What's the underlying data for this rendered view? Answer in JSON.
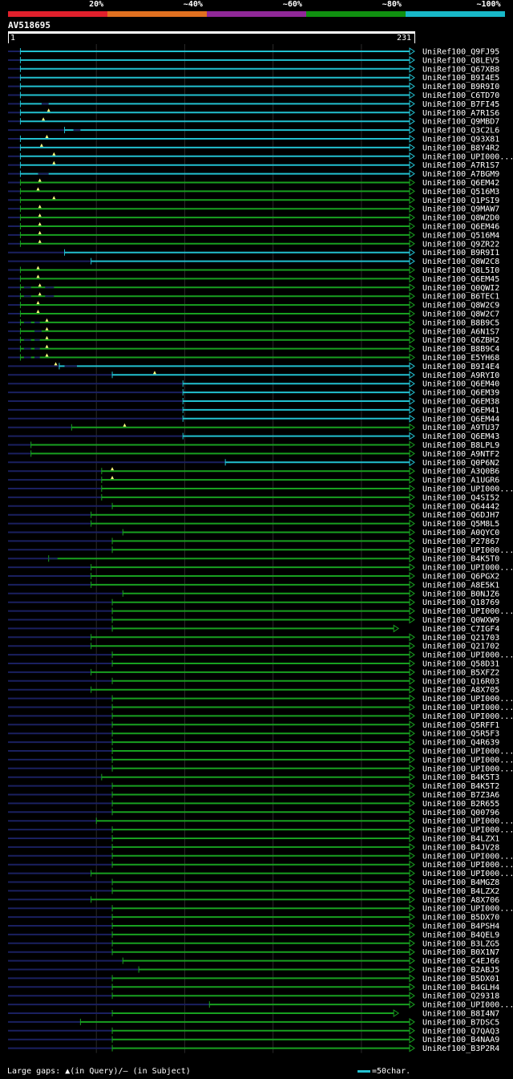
{
  "legend": [
    {
      "label": "20%",
      "color": "#e0202c"
    },
    {
      "label": "~40%",
      "color": "#e07020"
    },
    {
      "label": "~60%",
      "color": "#902898"
    },
    {
      "label": "~80%",
      "color": "#109010"
    },
    {
      "label": "~100%",
      "color": "#18b8c8"
    }
  ],
  "query": {
    "id": "AV518695",
    "start": "1",
    "end": "231",
    "length": 231
  },
  "colors": {
    "cyan": "#22c0d0",
    "green": "#18a020",
    "navy": "#1a2060",
    "grid": "#2a2a2a",
    "marker": "#ffff80"
  },
  "hits": [
    {
      "label": "UniRef100_Q9FJ95",
      "color": "cyan",
      "start": 8,
      "end": 231,
      "q_gaps": [],
      "s_gaps": []
    },
    {
      "label": "UniRef100_Q8LEV5",
      "color": "cyan",
      "start": 8,
      "end": 231,
      "q_gaps": [],
      "s_gaps": []
    },
    {
      "label": "UniRef100_Q67XB8",
      "color": "cyan",
      "start": 8,
      "end": 231,
      "q_gaps": [],
      "s_gaps": []
    },
    {
      "label": "UniRef100_B9I4E5",
      "color": "cyan",
      "start": 8,
      "end": 231,
      "q_gaps": [],
      "s_gaps": []
    },
    {
      "label": "UniRef100_B9R9I0",
      "color": "cyan",
      "start": 8,
      "end": 231,
      "q_gaps": [],
      "s_gaps": []
    },
    {
      "label": "UniRef100_C6TD70",
      "color": "cyan",
      "start": 8,
      "end": 231,
      "q_gaps": [],
      "s_gaps": []
    },
    {
      "label": "UniRef100_B7FI45",
      "color": "cyan",
      "start": 8,
      "end": 231,
      "q_gaps": [],
      "s_gaps": [
        [
          20,
          24
        ]
      ]
    },
    {
      "label": "UniRef100_A7R1S6",
      "color": "cyan",
      "start": 8,
      "end": 231,
      "q_gaps": [
        24
      ],
      "s_gaps": []
    },
    {
      "label": "UniRef100_Q9MBD7",
      "color": "cyan",
      "start": 8,
      "end": 231,
      "q_gaps": [
        21
      ],
      "s_gaps": []
    },
    {
      "label": "UniRef100_Q3C2L6",
      "color": "cyan",
      "start": 33,
      "end": 231,
      "q_gaps": [],
      "s_gaps": [
        [
          38,
          42
        ]
      ]
    },
    {
      "label": "UniRef100_Q93X81",
      "color": "cyan",
      "start": 8,
      "end": 231,
      "q_gaps": [
        23
      ],
      "s_gaps": []
    },
    {
      "label": "UniRef100_B8Y4R2",
      "color": "cyan",
      "start": 8,
      "end": 231,
      "q_gaps": [
        20
      ],
      "s_gaps": []
    },
    {
      "label": "UniRef100_UPI000...",
      "color": "cyan",
      "start": 8,
      "end": 231,
      "q_gaps": [
        27
      ],
      "s_gaps": []
    },
    {
      "label": "UniRef100_A7R1S7",
      "color": "cyan",
      "start": 8,
      "end": 231,
      "q_gaps": [
        27
      ],
      "s_gaps": []
    },
    {
      "label": "UniRef100_A7BGM9",
      "color": "cyan",
      "start": 8,
      "end": 231,
      "q_gaps": [],
      "s_gaps": [
        [
          18,
          24
        ]
      ]
    },
    {
      "label": "UniRef100_Q6EM42",
      "color": "green",
      "start": 8,
      "end": 231,
      "q_gaps": [
        19
      ],
      "s_gaps": []
    },
    {
      "label": "UniRef100_Q516M3",
      "color": "green",
      "start": 8,
      "end": 231,
      "q_gaps": [
        18
      ],
      "s_gaps": []
    },
    {
      "label": "UniRef100_Q1PSI9",
      "color": "green",
      "start": 8,
      "end": 231,
      "q_gaps": [
        27
      ],
      "s_gaps": []
    },
    {
      "label": "UniRef100_Q9MAW7",
      "color": "green",
      "start": 8,
      "end": 231,
      "q_gaps": [
        19
      ],
      "s_gaps": []
    },
    {
      "label": "UniRef100_Q8W2D0",
      "color": "green",
      "start": 8,
      "end": 231,
      "q_gaps": [
        19
      ],
      "s_gaps": []
    },
    {
      "label": "UniRef100_Q6EM46",
      "color": "green",
      "start": 8,
      "end": 231,
      "q_gaps": [
        19
      ],
      "s_gaps": []
    },
    {
      "label": "UniRef100_Q516M4",
      "color": "green",
      "start": 8,
      "end": 231,
      "q_gaps": [
        19
      ],
      "s_gaps": []
    },
    {
      "label": "UniRef100_Q9ZR22",
      "color": "green",
      "start": 8,
      "end": 231,
      "q_gaps": [
        19
      ],
      "s_gaps": []
    },
    {
      "label": "UniRef100_B9R9I1",
      "color": "cyan",
      "start": 33,
      "end": 231,
      "q_gaps": [],
      "s_gaps": []
    },
    {
      "label": "UniRef100_Q8W2C8",
      "color": "cyan",
      "start": 48,
      "end": 231,
      "q_gaps": [],
      "s_gaps": []
    },
    {
      "label": "UniRef100_Q8L5I0",
      "color": "green",
      "start": 8,
      "end": 231,
      "q_gaps": [
        18
      ],
      "s_gaps": []
    },
    {
      "label": "UniRef100_Q6EM45",
      "color": "green",
      "start": 8,
      "end": 231,
      "q_gaps": [
        18
      ],
      "s_gaps": []
    },
    {
      "label": "UniRef100_Q0QWI2",
      "color": "green",
      "start": 8,
      "end": 231,
      "q_gaps": [
        19
      ],
      "s_gaps": [
        [
          10,
          14
        ],
        [
          22,
          27
        ]
      ]
    },
    {
      "label": "UniRef100_B6TEC1",
      "color": "green",
      "start": 8,
      "end": 231,
      "q_gaps": [
        19
      ],
      "s_gaps": [
        [
          10,
          14
        ],
        [
          22,
          27
        ]
      ]
    },
    {
      "label": "UniRef100_Q8W2C9",
      "color": "green",
      "start": 8,
      "end": 231,
      "q_gaps": [
        18
      ],
      "s_gaps": []
    },
    {
      "label": "UniRef100_Q8W2C7",
      "color": "green",
      "start": 8,
      "end": 231,
      "q_gaps": [
        18
      ],
      "s_gaps": []
    },
    {
      "label": "UniRef100_B8B9C5",
      "color": "green",
      "start": 8,
      "end": 231,
      "q_gaps": [
        23
      ],
      "s_gaps": [
        [
          10,
          14
        ],
        [
          16,
          19
        ]
      ]
    },
    {
      "label": "UniRef100_A6N1S7",
      "color": "green",
      "start": 8,
      "end": 231,
      "q_gaps": [
        23
      ],
      "s_gaps": [
        [
          16,
          20
        ]
      ]
    },
    {
      "label": "UniRef100_Q6ZBH2",
      "color": "green",
      "start": 8,
      "end": 231,
      "q_gaps": [
        23
      ],
      "s_gaps": [
        [
          10,
          14
        ],
        [
          16,
          19
        ]
      ]
    },
    {
      "label": "UniRef100_B8B9C4",
      "color": "green",
      "start": 8,
      "end": 231,
      "q_gaps": [
        23
      ],
      "s_gaps": [
        [
          10,
          14
        ],
        [
          16,
          19
        ]
      ]
    },
    {
      "label": "UniRef100_E5YH68",
      "color": "green",
      "start": 8,
      "end": 231,
      "q_gaps": [
        23
      ],
      "s_gaps": [
        [
          10,
          14
        ],
        [
          16,
          19
        ]
      ]
    },
    {
      "label": "UniRef100_B9I4E4",
      "color": "cyan",
      "start": 30,
      "end": 231,
      "q_gaps": [
        28
      ],
      "s_gaps": [
        [
          33,
          40
        ]
      ]
    },
    {
      "label": "UniRef100_A9RYI0",
      "color": "cyan",
      "start": 60,
      "end": 231,
      "q_gaps": [
        84
      ],
      "s_gaps": []
    },
    {
      "label": "UniRef100_Q6EM40",
      "color": "cyan",
      "start": 100,
      "end": 231,
      "q_gaps": [],
      "s_gaps": []
    },
    {
      "label": "UniRef100_Q6EM39",
      "color": "cyan",
      "start": 100,
      "end": 231,
      "q_gaps": [],
      "s_gaps": []
    },
    {
      "label": "UniRef100_Q6EM38",
      "color": "cyan",
      "start": 100,
      "end": 231,
      "q_gaps": [],
      "s_gaps": []
    },
    {
      "label": "UniRef100_Q6EM41",
      "color": "cyan",
      "start": 100,
      "end": 231,
      "q_gaps": [],
      "s_gaps": []
    },
    {
      "label": "UniRef100_Q6EM44",
      "color": "cyan",
      "start": 100,
      "end": 231,
      "q_gaps": [],
      "s_gaps": []
    },
    {
      "label": "UniRef100_A9TU37",
      "color": "green",
      "start": 37,
      "end": 231,
      "q_gaps": [
        67
      ],
      "s_gaps": []
    },
    {
      "label": "UniRef100_Q6EM43",
      "color": "cyan",
      "start": 100,
      "end": 231,
      "q_gaps": [],
      "s_gaps": []
    },
    {
      "label": "UniRef100_B8LPL9",
      "color": "green",
      "start": 14,
      "end": 231,
      "q_gaps": [],
      "s_gaps": []
    },
    {
      "label": "UniRef100_A9NTF2",
      "color": "green",
      "start": 14,
      "end": 231,
      "q_gaps": [],
      "s_gaps": []
    },
    {
      "label": "UniRef100_Q0P6N2",
      "color": "cyan",
      "start": 124,
      "end": 231,
      "q_gaps": [],
      "s_gaps": []
    },
    {
      "label": "UniRef100_A3Q0B6",
      "color": "green",
      "start": 54,
      "end": 231,
      "q_gaps": [
        60
      ],
      "s_gaps": []
    },
    {
      "label": "UniRef100_A1UGR6",
      "color": "green",
      "start": 54,
      "end": 231,
      "q_gaps": [
        60
      ],
      "s_gaps": []
    },
    {
      "label": "UniRef100_UPI000...",
      "color": "green",
      "start": 54,
      "end": 231,
      "q_gaps": [],
      "s_gaps": []
    },
    {
      "label": "UniRef100_Q4SI52",
      "color": "green",
      "start": 54,
      "end": 231,
      "q_gaps": [],
      "s_gaps": []
    },
    {
      "label": "UniRef100_Q64442",
      "color": "green",
      "start": 60,
      "end": 231,
      "q_gaps": [],
      "s_gaps": []
    },
    {
      "label": "UniRef100_Q6DJH7",
      "color": "green",
      "start": 48,
      "end": 231,
      "q_gaps": [],
      "s_gaps": []
    },
    {
      "label": "UniRef100_Q5M8L5",
      "color": "green",
      "start": 48,
      "end": 231,
      "q_gaps": [],
      "s_gaps": []
    },
    {
      "label": "UniRef100_A0QYC0",
      "color": "green",
      "start": 66,
      "end": 231,
      "q_gaps": [],
      "s_gaps": []
    },
    {
      "label": "UniRef100_P27867",
      "color": "green",
      "start": 60,
      "end": 231,
      "q_gaps": [],
      "s_gaps": []
    },
    {
      "label": "UniRef100_UPI000...",
      "color": "green",
      "start": 60,
      "end": 231,
      "q_gaps": [],
      "s_gaps": []
    },
    {
      "label": "UniRef100_B4K5T0",
      "color": "green",
      "start": 24,
      "end": 231,
      "q_gaps": [],
      "s_gaps": [
        [
          24,
          29
        ]
      ]
    },
    {
      "label": "UniRef100_UPI000...",
      "color": "green",
      "start": 48,
      "end": 231,
      "q_gaps": [],
      "s_gaps": []
    },
    {
      "label": "UniRef100_Q6PGX2",
      "color": "green",
      "start": 48,
      "end": 231,
      "q_gaps": [],
      "s_gaps": []
    },
    {
      "label": "UniRef100_A8E5K1",
      "color": "green",
      "start": 48,
      "end": 231,
      "q_gaps": [],
      "s_gaps": []
    },
    {
      "label": "UniRef100_B0NJZ6",
      "color": "green",
      "start": 66,
      "end": 231,
      "q_gaps": [],
      "s_gaps": []
    },
    {
      "label": "UniRef100_Q18769",
      "color": "green",
      "start": 60,
      "end": 231,
      "q_gaps": [],
      "s_gaps": []
    },
    {
      "label": "UniRef100_UPI000...",
      "color": "green",
      "start": 60,
      "end": 231,
      "q_gaps": [],
      "s_gaps": []
    },
    {
      "label": "UniRef100_Q0WXW9",
      "color": "green",
      "start": 60,
      "end": 231,
      "q_gaps": [],
      "s_gaps": []
    },
    {
      "label": "UniRef100_C7IGF4",
      "color": "green",
      "start": 60,
      "end": 222,
      "q_gaps": [],
      "s_gaps": []
    },
    {
      "label": "UniRef100_Q21703",
      "color": "green",
      "start": 48,
      "end": 231,
      "q_gaps": [],
      "s_gaps": []
    },
    {
      "label": "UniRef100_Q21702",
      "color": "green",
      "start": 48,
      "end": 231,
      "q_gaps": [],
      "s_gaps": []
    },
    {
      "label": "UniRef100_UPI000...",
      "color": "green",
      "start": 60,
      "end": 231,
      "q_gaps": [],
      "s_gaps": []
    },
    {
      "label": "UniRef100_Q58D31",
      "color": "green",
      "start": 60,
      "end": 231,
      "q_gaps": [],
      "s_gaps": []
    },
    {
      "label": "UniRef100_B5XFZ2",
      "color": "green",
      "start": 48,
      "end": 231,
      "q_gaps": [],
      "s_gaps": []
    },
    {
      "label": "UniRef100_Q16R03",
      "color": "green",
      "start": 60,
      "end": 231,
      "q_gaps": [],
      "s_gaps": []
    },
    {
      "label": "UniRef100_A8X705",
      "color": "green",
      "start": 48,
      "end": 231,
      "q_gaps": [],
      "s_gaps": []
    },
    {
      "label": "UniRef100_UPI000...",
      "color": "green",
      "start": 60,
      "end": 231,
      "q_gaps": [],
      "s_gaps": []
    },
    {
      "label": "UniRef100_UPI000...",
      "color": "green",
      "start": 60,
      "end": 231,
      "q_gaps": [],
      "s_gaps": []
    },
    {
      "label": "UniRef100_UPI000...",
      "color": "green",
      "start": 60,
      "end": 231,
      "q_gaps": [],
      "s_gaps": []
    },
    {
      "label": "UniRef100_Q5RFF1",
      "color": "green",
      "start": 60,
      "end": 231,
      "q_gaps": [],
      "s_gaps": []
    },
    {
      "label": "UniRef100_Q5R5F3",
      "color": "green",
      "start": 60,
      "end": 231,
      "q_gaps": [],
      "s_gaps": []
    },
    {
      "label": "UniRef100_Q4R639",
      "color": "green",
      "start": 60,
      "end": 231,
      "q_gaps": [],
      "s_gaps": []
    },
    {
      "label": "UniRef100_UPI000...",
      "color": "green",
      "start": 60,
      "end": 231,
      "q_gaps": [],
      "s_gaps": []
    },
    {
      "label": "UniRef100_UPI000...",
      "color": "green",
      "start": 60,
      "end": 231,
      "q_gaps": [],
      "s_gaps": []
    },
    {
      "label": "UniRef100_UPI000...",
      "color": "green",
      "start": 60,
      "end": 231,
      "q_gaps": [],
      "s_gaps": []
    },
    {
      "label": "UniRef100_B4K5T3",
      "color": "green",
      "start": 54,
      "end": 231,
      "q_gaps": [],
      "s_gaps": []
    },
    {
      "label": "UniRef100_B4K5T2",
      "color": "green",
      "start": 60,
      "end": 231,
      "q_gaps": [],
      "s_gaps": []
    },
    {
      "label": "UniRef100_B7Z3A6",
      "color": "green",
      "start": 60,
      "end": 231,
      "q_gaps": [],
      "s_gaps": []
    },
    {
      "label": "UniRef100_B2R655",
      "color": "green",
      "start": 60,
      "end": 231,
      "q_gaps": [],
      "s_gaps": []
    },
    {
      "label": "UniRef100_Q00796",
      "color": "green",
      "start": 60,
      "end": 231,
      "q_gaps": [],
      "s_gaps": []
    },
    {
      "label": "UniRef100_UPI000...",
      "color": "green",
      "start": 51,
      "end": 231,
      "q_gaps": [],
      "s_gaps": []
    },
    {
      "label": "UniRef100_UPI000...",
      "color": "green",
      "start": 60,
      "end": 231,
      "q_gaps": [],
      "s_gaps": []
    },
    {
      "label": "UniRef100_B4LZX1",
      "color": "green",
      "start": 60,
      "end": 231,
      "q_gaps": [],
      "s_gaps": []
    },
    {
      "label": "UniRef100_B4JV28",
      "color": "green",
      "start": 60,
      "end": 231,
      "q_gaps": [],
      "s_gaps": []
    },
    {
      "label": "UniRef100_UPI000...",
      "color": "green",
      "start": 60,
      "end": 231,
      "q_gaps": [],
      "s_gaps": []
    },
    {
      "label": "UniRef100_UPI000...",
      "color": "green",
      "start": 60,
      "end": 231,
      "q_gaps": [],
      "s_gaps": []
    },
    {
      "label": "UniRef100_UPI000...",
      "color": "green",
      "start": 48,
      "end": 231,
      "q_gaps": [],
      "s_gaps": []
    },
    {
      "label": "UniRef100_B4MGZ8",
      "color": "green",
      "start": 60,
      "end": 231,
      "q_gaps": [],
      "s_gaps": []
    },
    {
      "label": "UniRef100_B4LZX2",
      "color": "green",
      "start": 60,
      "end": 231,
      "q_gaps": [],
      "s_gaps": []
    },
    {
      "label": "UniRef100_A8X706",
      "color": "green",
      "start": 48,
      "end": 231,
      "q_gaps": [],
      "s_gaps": []
    },
    {
      "label": "UniRef100_UPI000...",
      "color": "green",
      "start": 60,
      "end": 231,
      "q_gaps": [],
      "s_gaps": []
    },
    {
      "label": "UniRef100_B5DX70",
      "color": "green",
      "start": 60,
      "end": 231,
      "q_gaps": [],
      "s_gaps": []
    },
    {
      "label": "UniRef100_B4PSH4",
      "color": "green",
      "start": 60,
      "end": 231,
      "q_gaps": [],
      "s_gaps": []
    },
    {
      "label": "UniRef100_B4QEL9",
      "color": "green",
      "start": 60,
      "end": 231,
      "q_gaps": [],
      "s_gaps": []
    },
    {
      "label": "UniRef100_B3LZG5",
      "color": "green",
      "start": 60,
      "end": 231,
      "q_gaps": [],
      "s_gaps": []
    },
    {
      "label": "UniRef100_B0X1N7",
      "color": "green",
      "start": 60,
      "end": 231,
      "q_gaps": [],
      "s_gaps": []
    },
    {
      "label": "UniRef100_C4EJ66",
      "color": "green",
      "start": 66,
      "end": 231,
      "q_gaps": [],
      "s_gaps": []
    },
    {
      "label": "UniRef100_B2ABJ5",
      "color": "green",
      "start": 75,
      "end": 231,
      "q_gaps": [],
      "s_gaps": []
    },
    {
      "label": "UniRef100_B5DX01",
      "color": "green",
      "start": 60,
      "end": 231,
      "q_gaps": [],
      "s_gaps": []
    },
    {
      "label": "UniRef100_B4GLH4",
      "color": "green",
      "start": 60,
      "end": 231,
      "q_gaps": [],
      "s_gaps": []
    },
    {
      "label": "UniRef100_Q29318",
      "color": "green",
      "start": 60,
      "end": 231,
      "q_gaps": [],
      "s_gaps": []
    },
    {
      "label": "UniRef100_UPI000...",
      "color": "green",
      "start": 115,
      "end": 231,
      "q_gaps": [],
      "s_gaps": []
    },
    {
      "label": "UniRef100_B8I4N7",
      "color": "green",
      "start": 60,
      "end": 222,
      "q_gaps": [],
      "s_gaps": []
    },
    {
      "label": "UniRef100_B7DSC5",
      "color": "green",
      "start": 42,
      "end": 231,
      "q_gaps": [],
      "s_gaps": []
    },
    {
      "label": "UniRef100_Q7QAQ3",
      "color": "green",
      "start": 60,
      "end": 231,
      "q_gaps": [],
      "s_gaps": []
    },
    {
      "label": "UniRef100_B4NAA9",
      "color": "green",
      "start": 60,
      "end": 231,
      "q_gaps": [],
      "s_gaps": []
    },
    {
      "label": "UniRef100_B3P2R4",
      "color": "green",
      "start": 60,
      "end": 231,
      "q_gaps": [],
      "s_gaps": []
    }
  ],
  "footer": {
    "gaps_text": "Large gaps: ▲(in Query)/— (in Subject)",
    "scale_text": "=50char."
  }
}
